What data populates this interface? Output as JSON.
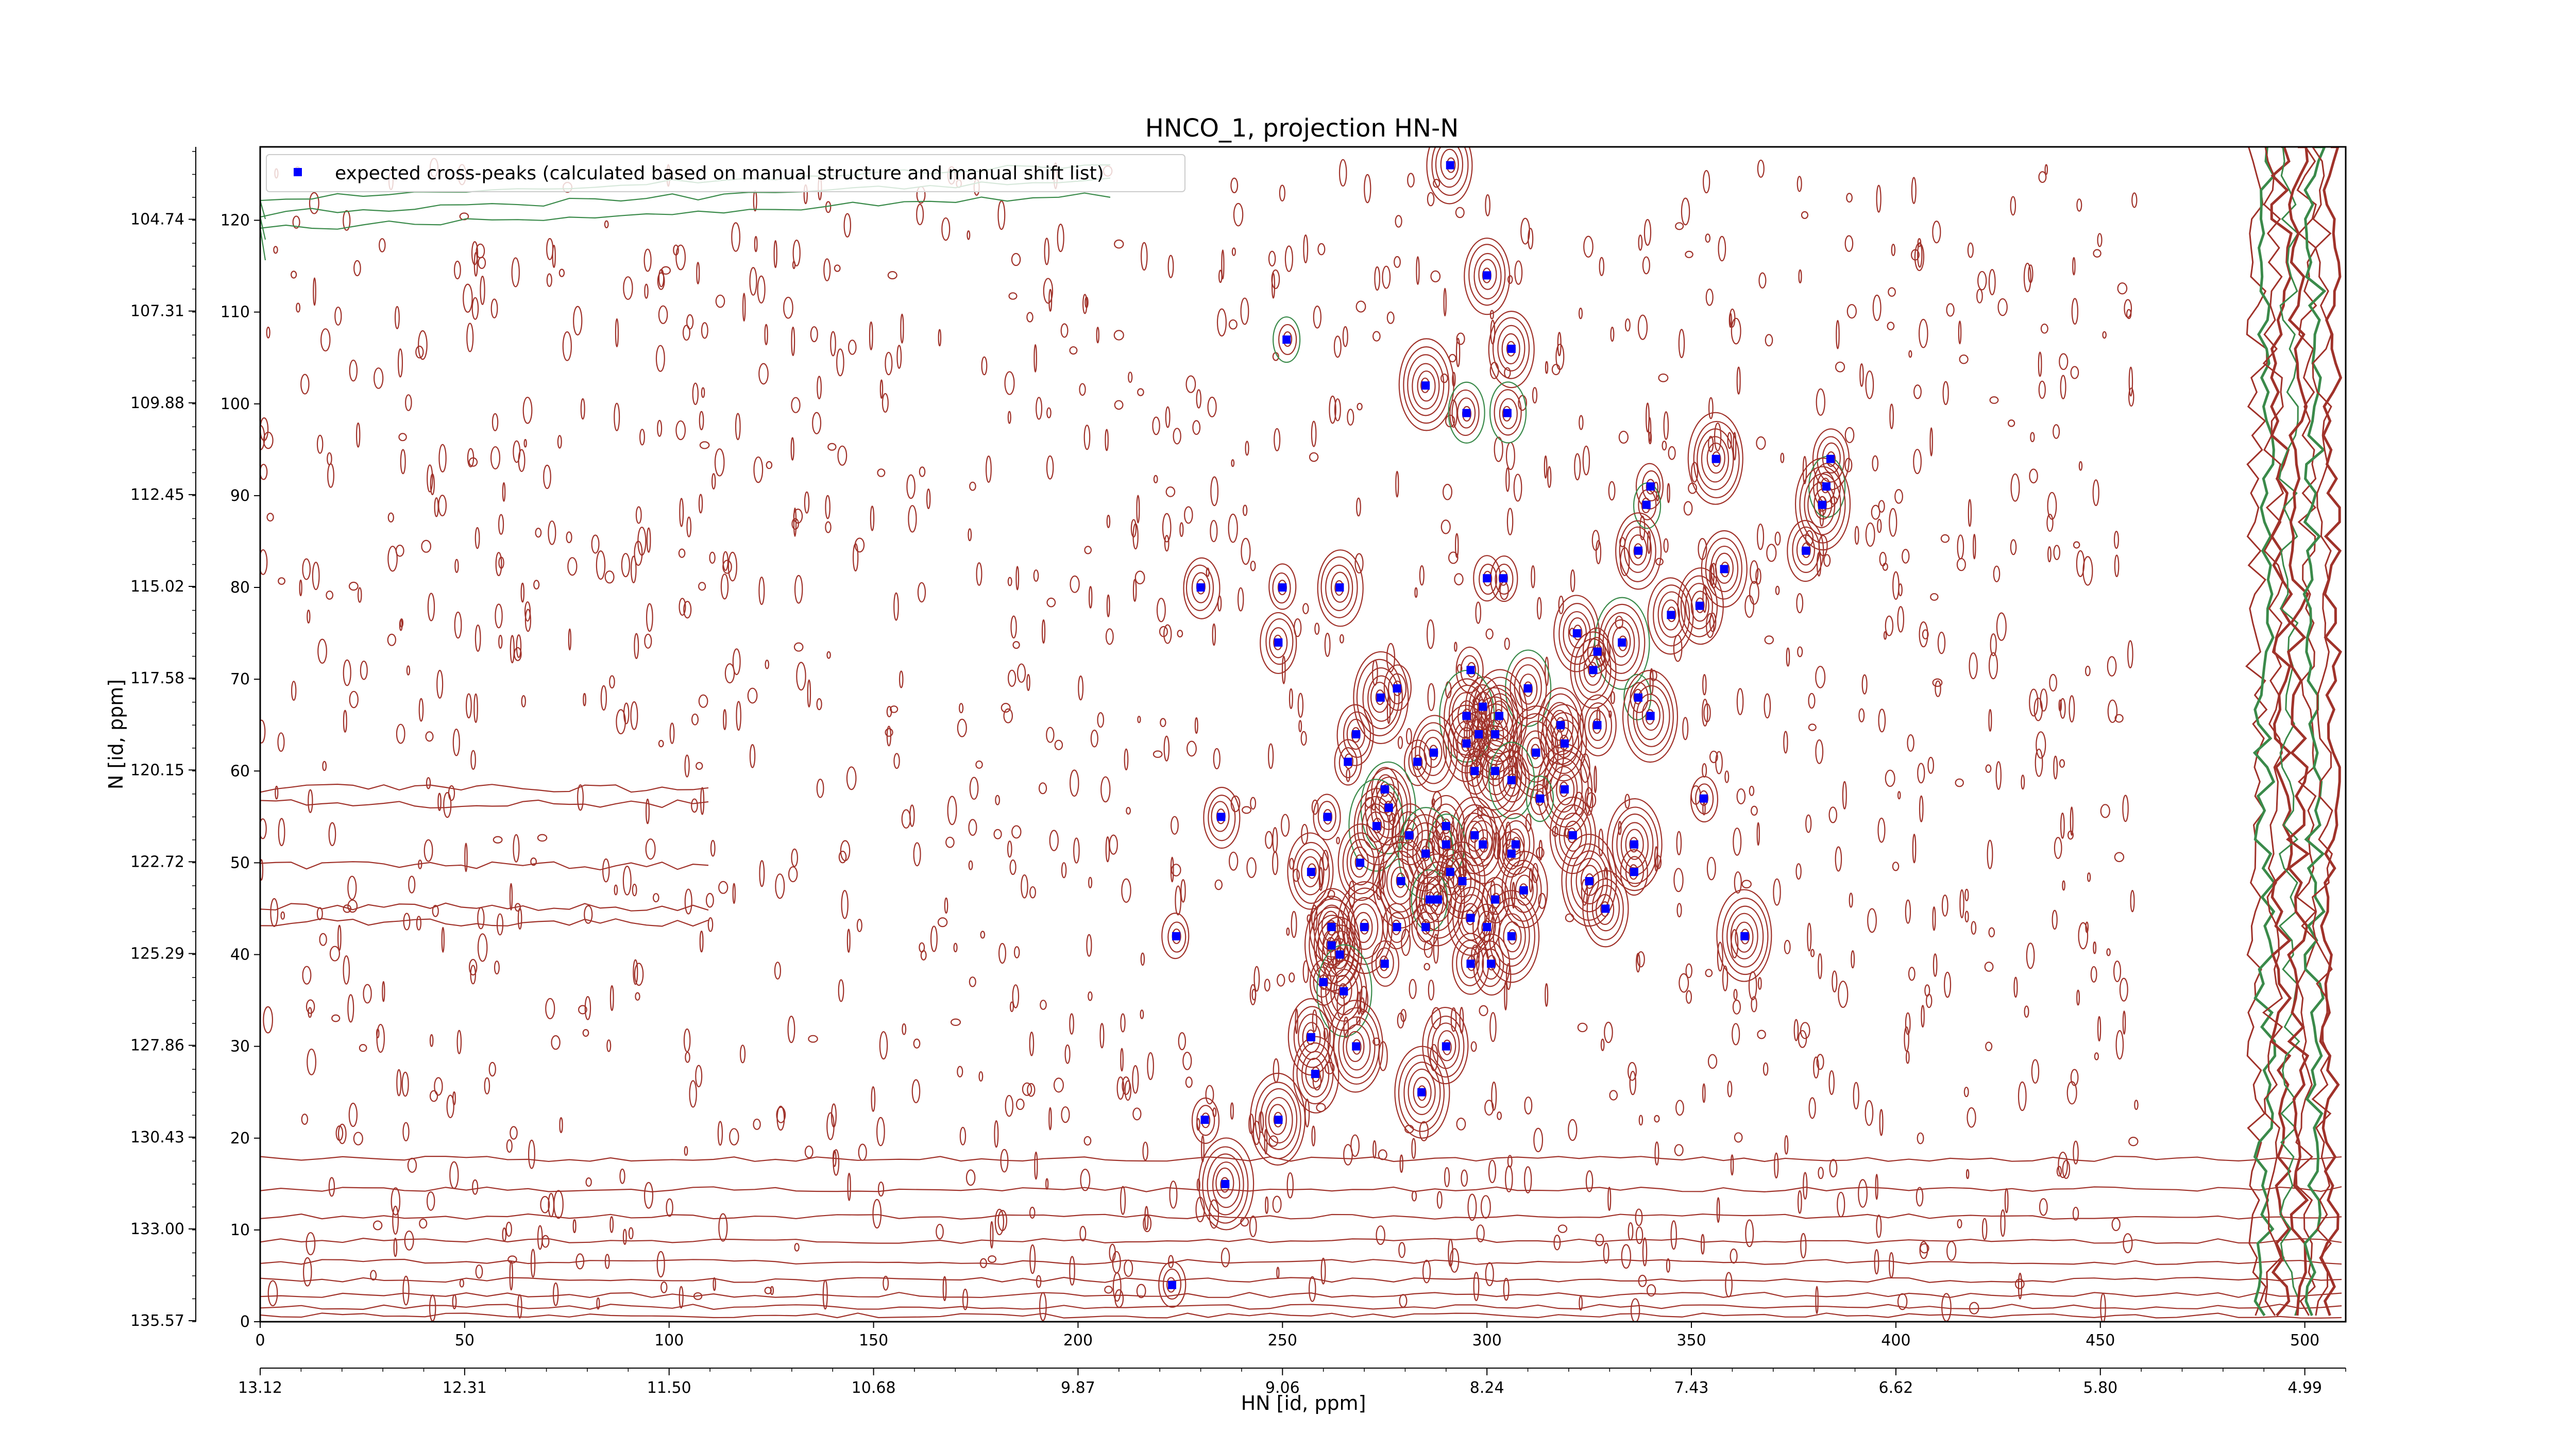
{
  "chart_data": {
    "type": "scatter",
    "title": "HNCO_1, projection HN-N",
    "xlabel": "HN [id, ppm]",
    "ylabel": "N [id, ppm]",
    "xlim": [
      0,
      510
    ],
    "ylim": [
      0,
      128
    ],
    "x_ticks": [
      0,
      50,
      100,
      150,
      200,
      250,
      300,
      350,
      400,
      450,
      500
    ],
    "y_ticks": [
      0,
      10,
      20,
      30,
      40,
      50,
      60,
      70,
      80,
      90,
      100,
      110,
      120
    ],
    "x_secondary_ticks": [
      "13.12",
      "12.31",
      "11.50",
      "10.68",
      "9.87",
      "9.06",
      "8.24",
      "7.43",
      "6.62",
      "5.80",
      "4.99"
    ],
    "y_secondary_ticks": [
      "135.57",
      "133.00",
      "130.43",
      "127.86",
      "125.29",
      "122.72",
      "120.15",
      "117.58",
      "115.02",
      "112.45",
      "109.88",
      "107.31",
      "104.74"
    ],
    "legend": {
      "position": "top-left",
      "entries": [
        "expected cross-peaks (calculated based on manual structure and manual shift list)"
      ]
    },
    "grid": false,
    "colors": {
      "marker": "#0000ff",
      "contour_red": "#a0322a",
      "contour_green": "#3a8a4a"
    },
    "series": [
      {
        "name": "expected cross-peaks (calculated based on manual structure and manual shift list)",
        "points": [
          [
            291,
            126
          ],
          [
            300,
            114
          ],
          [
            251,
            107
          ],
          [
            306,
            106
          ],
          [
            285,
            102
          ],
          [
            295,
            99
          ],
          [
            305,
            99
          ],
          [
            356,
            94
          ],
          [
            384,
            94
          ],
          [
            340,
            91
          ],
          [
            383,
            91
          ],
          [
            339,
            89
          ],
          [
            382,
            89
          ],
          [
            337,
            84
          ],
          [
            378,
            84
          ],
          [
            358,
            82
          ],
          [
            300,
            81
          ],
          [
            304,
            81
          ],
          [
            230,
            80
          ],
          [
            250,
            80
          ],
          [
            264,
            80
          ],
          [
            352,
            78
          ],
          [
            345,
            77
          ],
          [
            322,
            75
          ],
          [
            333,
            74
          ],
          [
            327,
            73
          ],
          [
            249,
            74
          ],
          [
            326,
            71
          ],
          [
            296,
            71
          ],
          [
            278,
            69
          ],
          [
            310,
            69
          ],
          [
            337,
            68
          ],
          [
            274,
            68
          ],
          [
            299,
            67
          ],
          [
            303,
            66
          ],
          [
            295,
            66
          ],
          [
            340,
            66
          ],
          [
            318,
            65
          ],
          [
            327,
            65
          ],
          [
            298,
            64
          ],
          [
            268,
            64
          ],
          [
            302,
            64
          ],
          [
            319,
            63
          ],
          [
            295,
            63
          ],
          [
            287,
            62
          ],
          [
            312,
            62
          ],
          [
            266,
            61
          ],
          [
            283,
            61
          ],
          [
            297,
            60
          ],
          [
            302,
            60
          ],
          [
            275,
            58
          ],
          [
            306,
            59
          ],
          [
            319,
            58
          ],
          [
            353,
            57
          ],
          [
            313,
            57
          ],
          [
            276,
            56
          ],
          [
            261,
            55
          ],
          [
            235,
            55
          ],
          [
            273,
            54
          ],
          [
            290,
            54
          ],
          [
            281,
            53
          ],
          [
            321,
            53
          ],
          [
            297,
            53
          ],
          [
            290,
            52
          ],
          [
            336,
            52
          ],
          [
            299,
            52
          ],
          [
            307,
            52
          ],
          [
            306,
            51
          ],
          [
            285,
            51
          ],
          [
            269,
            50
          ],
          [
            336,
            49
          ],
          [
            291,
            49
          ],
          [
            257,
            49
          ],
          [
            279,
            48
          ],
          [
            294,
            48
          ],
          [
            325,
            48
          ],
          [
            286,
            46
          ],
          [
            288,
            46
          ],
          [
            302,
            46
          ],
          [
            309,
            47
          ],
          [
            329,
            45
          ],
          [
            296,
            44
          ],
          [
            285,
            43
          ],
          [
            262,
            43
          ],
          [
            270,
            43
          ],
          [
            278,
            43
          ],
          [
            300,
            43
          ],
          [
            306,
            42
          ],
          [
            224,
            42
          ],
          [
            363,
            42
          ],
          [
            262,
            41
          ],
          [
            264,
            40
          ],
          [
            301,
            39
          ],
          [
            296,
            39
          ],
          [
            275,
            39
          ],
          [
            260,
            37
          ],
          [
            265,
            36
          ],
          [
            257,
            31
          ],
          [
            268,
            30
          ],
          [
            290,
            30
          ],
          [
            258,
            27
          ],
          [
            284,
            25
          ],
          [
            231,
            22
          ],
          [
            249,
            22
          ],
          [
            236,
            15
          ],
          [
            223,
            4
          ]
        ]
      }
    ]
  }
}
